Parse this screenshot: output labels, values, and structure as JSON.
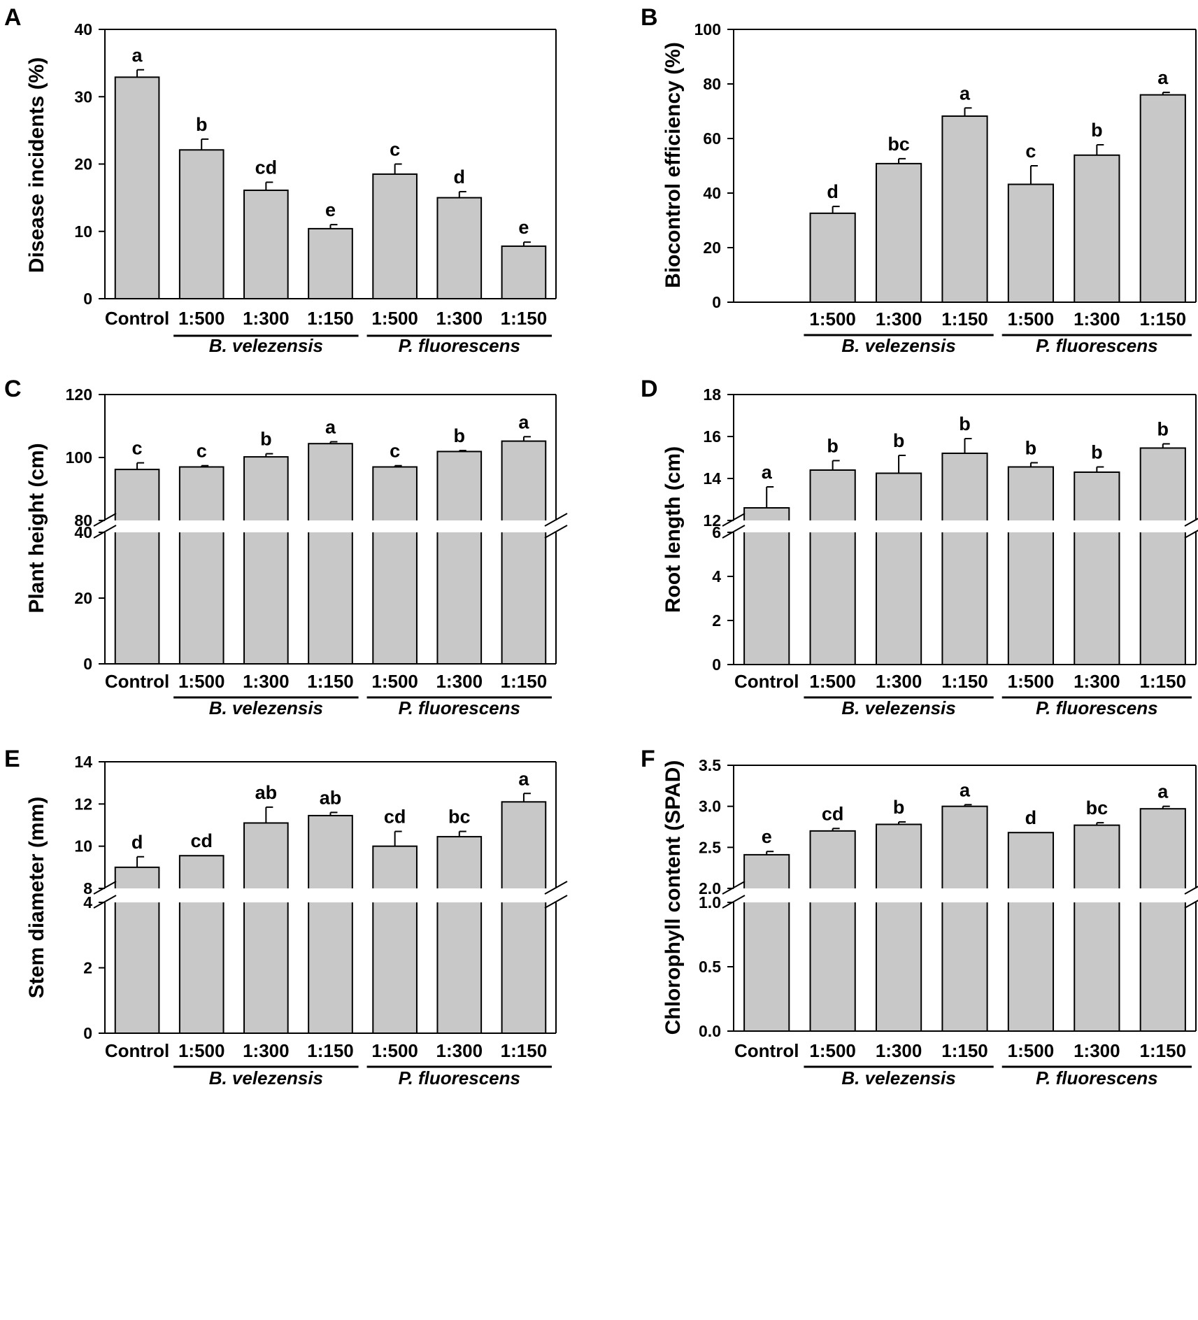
{
  "figure": {
    "groups": [
      "B. velezensis",
      "P. fluorescens"
    ]
  },
  "chart_data": [
    {
      "type": "bar",
      "panel": "A",
      "title": "",
      "xlabel": "",
      "ylabel": "Disease incidents (%)",
      "categories": [
        "Control",
        "1:500",
        "1:300",
        "1:150",
        "1:500",
        "1:300",
        "1:150"
      ],
      "category_groups": [
        "",
        "B. velezensis",
        "B. velezensis",
        "B. velezensis",
        "P. fluorescens",
        "P. fluorescens",
        "P. fluorescens"
      ],
      "values": [
        32.9,
        22.1,
        16.1,
        10.4,
        18.5,
        15.0,
        7.8
      ],
      "errors": [
        1.1,
        1.6,
        1.2,
        0.6,
        1.5,
        0.9,
        0.6
      ],
      "significance": [
        "a",
        "b",
        "cd",
        "e",
        "c",
        "d",
        "e"
      ],
      "ylim": [
        0,
        40
      ],
      "yticks": [
        0,
        10,
        20,
        30,
        40
      ],
      "axis_break": null
    },
    {
      "type": "bar",
      "panel": "B",
      "title": "",
      "xlabel": "",
      "ylabel": "Biocontrol efficiency (%)",
      "categories": [
        "1:500",
        "1:300",
        "1:150",
        "1:500",
        "1:300",
        "1:150"
      ],
      "category_groups": [
        "B. velezensis",
        "B. velezensis",
        "B. velezensis",
        "P. fluorescens",
        "P. fluorescens",
        "P. fluorescens"
      ],
      "values": [
        32.6,
        50.8,
        68.2,
        43.2,
        53.9,
        76.0
      ],
      "errors": [
        2.5,
        1.8,
        3.0,
        6.8,
        3.8,
        0.9
      ],
      "significance": [
        "d",
        "bc",
        "a",
        "c",
        "b",
        "a"
      ],
      "ylim": [
        0,
        100
      ],
      "yticks": [
        0,
        20,
        40,
        60,
        80,
        100
      ],
      "axis_break": null
    },
    {
      "type": "bar",
      "panel": "C",
      "title": "",
      "xlabel": "",
      "ylabel": "Plant height (cm)",
      "categories": [
        "Control",
        "1:500",
        "1:300",
        "1:150",
        "1:500",
        "1:300",
        "1:150"
      ],
      "category_groups": [
        "",
        "B. velezensis",
        "B. velezensis",
        "B. velezensis",
        "P. fluorescens",
        "P. fluorescens",
        "P. fluorescens"
      ],
      "values": [
        96.2,
        97.0,
        100.2,
        104.4,
        97.0,
        101.9,
        105.2
      ],
      "errors": [
        2.1,
        0.4,
        1.0,
        0.6,
        0.4,
        0.3,
        1.4
      ],
      "significance": [
        "c",
        "c",
        "b",
        "a",
        "c",
        "b",
        "a"
      ],
      "ylim": [
        0,
        120
      ],
      "yticks": [
        0,
        20,
        40,
        80,
        100,
        120
      ],
      "axis_break": [
        40,
        80
      ]
    },
    {
      "type": "bar",
      "panel": "D",
      "title": "",
      "xlabel": "",
      "ylabel": "Root length (cm)",
      "categories": [
        "Control",
        "1:500",
        "1:300",
        "1:150",
        "1:500",
        "1:300",
        "1:150"
      ],
      "category_groups": [
        "",
        "B. velezensis",
        "B. velezensis",
        "B. velezensis",
        "P. fluorescens",
        "P. fluorescens",
        "P. fluorescens"
      ],
      "values": [
        12.6,
        14.4,
        14.25,
        15.2,
        14.55,
        14.3,
        15.45
      ],
      "errors": [
        1.0,
        0.45,
        0.85,
        0.7,
        0.2,
        0.25,
        0.2
      ],
      "significance": [
        "a",
        "b",
        "b",
        "b",
        "b",
        "b",
        "b"
      ],
      "ylim": [
        0,
        18
      ],
      "yticks": [
        0,
        2,
        4,
        6,
        12,
        14,
        16,
        18
      ],
      "axis_break": [
        6,
        12
      ]
    },
    {
      "type": "bar",
      "panel": "E",
      "title": "",
      "xlabel": "",
      "ylabel": "Stem diameter (mm)",
      "categories": [
        "Control",
        "1:500",
        "1:300",
        "1:150",
        "1:500",
        "1:300",
        "1:150"
      ],
      "category_groups": [
        "",
        "B. velezensis",
        "B. velezensis",
        "B. velezensis",
        "P. fluorescens",
        "P. fluorescens",
        "P. fluorescens"
      ],
      "values": [
        9.0,
        9.55,
        11.1,
        11.45,
        10.0,
        10.45,
        12.1
      ],
      "errors": [
        0.5,
        0.0,
        0.75,
        0.15,
        0.7,
        0.25,
        0.4
      ],
      "significance": [
        "d",
        "cd",
        "ab",
        "ab",
        "cd",
        "bc",
        "a"
      ],
      "ylim": [
        0,
        14
      ],
      "yticks": [
        0,
        2,
        4,
        8,
        10,
        12,
        14
      ],
      "axis_break": [
        4,
        8
      ]
    },
    {
      "type": "bar",
      "panel": "F",
      "title": "",
      "xlabel": "",
      "ylabel": "Chlorophyll content (SPAD)",
      "categories": [
        "Control",
        "1:500",
        "1:300",
        "1:150",
        "1:500",
        "1:300",
        "1:150"
      ],
      "category_groups": [
        "",
        "B. velezensis",
        "B. velezensis",
        "B. velezensis",
        "P. fluorescens",
        "P. fluorescens",
        "P. fluorescens"
      ],
      "values": [
        2.41,
        2.7,
        2.78,
        3.0,
        2.68,
        2.77,
        2.97
      ],
      "errors": [
        0.04,
        0.03,
        0.03,
        0.02,
        0.0,
        0.03,
        0.03
      ],
      "significance": [
        "e",
        "cd",
        "b",
        "a",
        "d",
        "bc",
        "a"
      ],
      "ylim": [
        0,
        3.5
      ],
      "yticks": [
        "0.0",
        "0.5",
        "1.0",
        "2.0",
        "2.5",
        "3.0",
        "3.5"
      ],
      "axis_break": [
        1.0,
        2.0
      ]
    }
  ]
}
